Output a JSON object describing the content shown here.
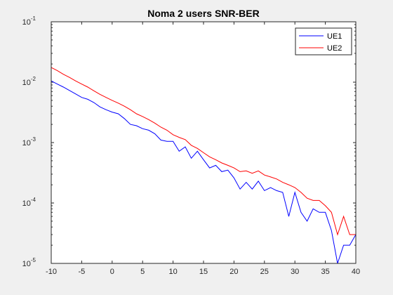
{
  "chart_data": {
    "type": "line",
    "title": "Noma 2 users SNR-BER",
    "xlabel": "",
    "ylabel": "",
    "xlim": [
      -10,
      40
    ],
    "ylim": [
      1e-05,
      0.1
    ],
    "yscale": "log",
    "grid": false,
    "legend_position": "top-right",
    "x_ticks": [
      -10,
      -5,
      0,
      5,
      10,
      15,
      20,
      25,
      30,
      35,
      40
    ],
    "x_tick_labels": [
      "-10",
      "-5",
      "0",
      "5",
      "10",
      "15",
      "20",
      "25",
      "30",
      "35",
      "40"
    ],
    "y_ticks": [
      {
        "value": 1e-05,
        "base": "10",
        "exp": "-5"
      },
      {
        "value": 0.0001,
        "base": "10",
        "exp": "-4"
      },
      {
        "value": 0.001,
        "base": "10",
        "exp": "-3"
      },
      {
        "value": 0.01,
        "base": "10",
        "exp": "-2"
      },
      {
        "value": 0.1,
        "base": "10",
        "exp": "-1"
      }
    ],
    "x": [
      -10,
      -9,
      -8,
      -7,
      -6,
      -5,
      -4,
      -3,
      -2,
      -1,
      0,
      1,
      2,
      3,
      4,
      5,
      6,
      7,
      8,
      9,
      10,
      11,
      12,
      13,
      14,
      15,
      16,
      17,
      18,
      19,
      20,
      21,
      22,
      23,
      24,
      25,
      26,
      27,
      28,
      29,
      30,
      31,
      32,
      33,
      34,
      35,
      36,
      37,
      38,
      39,
      40
    ],
    "series": [
      {
        "name": "UE1",
        "color": "#0000ff",
        "values": [
          0.0105,
          0.0093,
          0.0083,
          0.0073,
          0.0064,
          0.0056,
          0.0052,
          0.0046,
          0.0039,
          0.0035,
          0.0032,
          0.003,
          0.0025,
          0.002,
          0.0019,
          0.0017,
          0.0016,
          0.0014,
          0.0011,
          0.00105,
          0.00105,
          0.00072,
          0.00085,
          0.00055,
          0.00072,
          0.00052,
          0.00038,
          0.00042,
          0.00033,
          0.00035,
          0.00026,
          0.00017,
          0.00022,
          0.00017,
          0.00023,
          0.00016,
          0.00018,
          0.00016,
          0.00015,
          6e-05,
          0.00015,
          7e-05,
          5e-05,
          8e-05,
          7e-05,
          7e-05,
          3.5e-05,
          1e-05,
          2e-05,
          2e-05,
          3e-05
        ]
      },
      {
        "name": "UE2",
        "color": "#ff0000",
        "values": [
          0.0175,
          0.0155,
          0.0135,
          0.012,
          0.0105,
          0.0093,
          0.0083,
          0.0072,
          0.0063,
          0.0056,
          0.005,
          0.0045,
          0.004,
          0.0035,
          0.003,
          0.0027,
          0.0024,
          0.0021,
          0.0018,
          0.0016,
          0.00135,
          0.00122,
          0.00112,
          0.0009,
          0.0008,
          0.00068,
          0.00058,
          0.00052,
          0.00046,
          0.00042,
          0.00038,
          0.00033,
          0.00034,
          0.00031,
          0.00034,
          0.00029,
          0.00027,
          0.00025,
          0.00022,
          0.0002,
          0.00018,
          0.00015,
          0.00012,
          0.00011,
          0.00011,
          9e-05,
          7e-05,
          3e-05,
          6e-05,
          3e-05,
          3e-05
        ]
      }
    ]
  }
}
